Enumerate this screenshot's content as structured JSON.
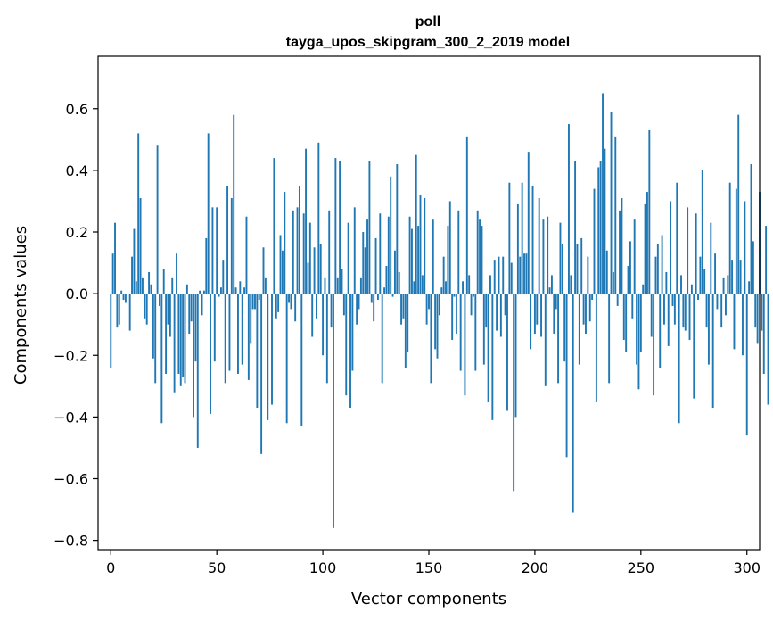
{
  "chart_data": {
    "type": "bar",
    "title": "poll",
    "subtitle": "tayga_upos_skipgram_300_2_2019 model",
    "xlabel": "Vector components",
    "ylabel": "Components values",
    "xlim": [
      -6,
      306
    ],
    "ylim": [
      -0.83,
      0.77
    ],
    "xticks": [
      0,
      50,
      100,
      150,
      200,
      250,
      300
    ],
    "yticks": [
      -0.8,
      -0.6,
      -0.4,
      -0.2,
      0.0,
      0.2,
      0.4,
      0.6
    ],
    "ytick_labels": [
      "−0.8",
      "−0.6",
      "−0.4",
      "−0.2",
      "0.0",
      "0.2",
      "0.4",
      "0.6"
    ],
    "grid": false,
    "bar_color": "#1f77b4",
    "values": [
      -0.24,
      0.13,
      0.23,
      -0.11,
      -0.1,
      0.01,
      -0.02,
      -0.03,
      0.0,
      -0.12,
      0.12,
      0.21,
      0.04,
      0.52,
      0.31,
      0.05,
      -0.08,
      -0.1,
      0.07,
      0.03,
      -0.21,
      -0.29,
      0.48,
      -0.04,
      -0.42,
      0.08,
      -0.26,
      -0.1,
      -0.14,
      0.05,
      -0.32,
      0.13,
      -0.26,
      -0.3,
      -0.27,
      -0.29,
      0.03,
      -0.13,
      -0.09,
      -0.4,
      -0.22,
      -0.5,
      0.01,
      -0.07,
      0.01,
      0.18,
      0.52,
      -0.39,
      0.28,
      -0.22,
      0.28,
      -0.01,
      0.02,
      0.11,
      -0.29,
      0.35,
      -0.25,
      0.31,
      0.58,
      0.02,
      -0.26,
      0.04,
      -0.23,
      0.02,
      0.25,
      -0.28,
      -0.16,
      -0.05,
      -0.05,
      -0.37,
      -0.02,
      -0.52,
      0.15,
      0.05,
      -0.41,
      0.0,
      -0.36,
      0.44,
      -0.08,
      -0.06,
      0.19,
      0.14,
      0.33,
      -0.42,
      -0.03,
      -0.05,
      0.27,
      -0.09,
      0.28,
      0.35,
      -0.43,
      0.26,
      0.47,
      0.1,
      0.23,
      -0.14,
      0.15,
      -0.08,
      0.49,
      0.16,
      -0.2,
      0.05,
      -0.29,
      0.27,
      -0.11,
      -0.76,
      0.44,
      0.05,
      0.43,
      0.08,
      -0.07,
      -0.33,
      0.23,
      -0.37,
      -0.25,
      0.28,
      -0.1,
      -0.05,
      0.05,
      0.2,
      0.15,
      0.24,
      0.43,
      -0.03,
      -0.09,
      0.18,
      -0.02,
      0.26,
      -0.29,
      0.02,
      0.09,
      0.25,
      0.38,
      -0.01,
      0.14,
      0.42,
      0.07,
      -0.1,
      -0.08,
      -0.24,
      -0.19,
      0.25,
      0.21,
      0.04,
      0.45,
      0.22,
      0.32,
      0.06,
      0.31,
      -0.1,
      -0.05,
      -0.29,
      0.24,
      -0.18,
      -0.21,
      -0.07,
      0.02,
      0.12,
      0.04,
      0.22,
      0.3,
      -0.15,
      -0.01,
      -0.13,
      0.27,
      -0.25,
      0.04,
      -0.33,
      0.51,
      0.06,
      -0.07,
      -0.01,
      -0.25,
      0.27,
      0.24,
      0.22,
      -0.23,
      -0.11,
      -0.35,
      0.06,
      -0.41,
      0.11,
      -0.12,
      0.12,
      -0.14,
      0.12,
      -0.07,
      -0.38,
      0.36,
      0.1,
      -0.64,
      -0.4,
      0.29,
      0.12,
      0.36,
      0.13,
      0.13,
      0.46,
      -0.18,
      0.35,
      -0.13,
      -0.1,
      0.31,
      -0.14,
      0.24,
      -0.3,
      0.25,
      0.02,
      0.06,
      -0.13,
      -0.05,
      -0.29,
      0.23,
      0.16,
      -0.22,
      -0.53,
      0.55,
      0.06,
      -0.71,
      0.43,
      0.16,
      -0.23,
      0.18,
      -0.1,
      -0.13,
      0.12,
      -0.09,
      -0.02,
      0.34,
      -0.35,
      0.41,
      0.43,
      0.65,
      0.47,
      0.14,
      -0.29,
      0.59,
      0.07,
      0.51,
      -0.04,
      0.27,
      0.31,
      -0.15,
      -0.19,
      0.09,
      0.17,
      -0.08,
      0.24,
      -0.23,
      -0.31,
      -0.19,
      0.03,
      0.29,
      0.33,
      0.53,
      -0.14,
      -0.33,
      0.12,
      0.16,
      -0.24,
      0.19,
      -0.1,
      0.07,
      -0.17,
      0.3,
      -0.04,
      -0.1,
      0.36,
      -0.42,
      0.06,
      -0.11,
      -0.12,
      0.28,
      -0.15,
      0.03,
      -0.34,
      0.26,
      -0.02,
      0.12,
      0.4,
      0.08,
      -0.11,
      -0.23,
      0.23,
      -0.37,
      0.13,
      -0.05,
      0.0,
      -0.11,
      0.05,
      -0.07,
      0.06,
      0.36,
      0.11,
      -0.18,
      0.34,
      0.58,
      0.11,
      -0.2,
      0.3,
      -0.46,
      0.04,
      0.42,
      0.17,
      -0.11,
      -0.16,
      0.33,
      -0.12,
      -0.26,
      0.22,
      -0.36
    ]
  }
}
